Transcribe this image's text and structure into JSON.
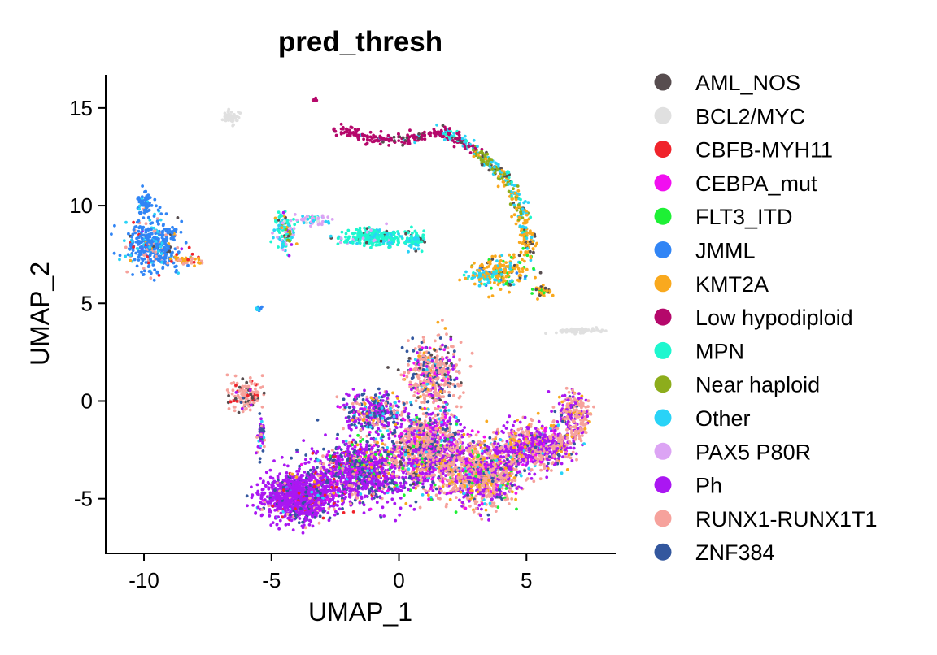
{
  "chart_data": {
    "type": "scatter",
    "title": "pred_thresh",
    "xlabel": "UMAP_1",
    "ylabel": "UMAP_2",
    "xlim": [
      -11.5,
      8.5
    ],
    "ylim": [
      -7.8,
      16.7
    ],
    "xticks": [
      -10,
      -5,
      0,
      5
    ],
    "xtick_labels": [
      "-10",
      "-5",
      "0",
      "5"
    ],
    "yticks": [
      -5,
      0,
      5,
      10,
      15
    ],
    "ytick_labels": [
      "-5",
      "0",
      "5",
      "10",
      "15"
    ],
    "legend_position": "right",
    "series": [
      {
        "name": "AML_NOS",
        "color": "#574D4F"
      },
      {
        "name": "BCL2/MYC",
        "color": "#E0E0E0"
      },
      {
        "name": "CBFB-MYH11",
        "color": "#F0232B"
      },
      {
        "name": "CEBPA_mut",
        "color": "#F10FF0"
      },
      {
        "name": "FLT3_ITD",
        "color": "#1EF035"
      },
      {
        "name": "JMML",
        "color": "#3185F5"
      },
      {
        "name": "KMT2A",
        "color": "#F9A91E"
      },
      {
        "name": "Low hypodiploid",
        "color": "#B5086B"
      },
      {
        "name": "MPN",
        "color": "#1EF7CF"
      },
      {
        "name": "Near haploid",
        "color": "#8DAD1C"
      },
      {
        "name": "Other",
        "color": "#29D3F7"
      },
      {
        "name": "PAX5 P80R",
        "color": "#DCA4F4"
      },
      {
        "name": "Ph",
        "color": "#AA17F2"
      },
      {
        "name": "RUNX1-RUNX1T1",
        "color": "#F6A29C"
      },
      {
        "name": "ZNF384",
        "color": "#33579E"
      }
    ],
    "clusters": [
      {
        "center": [
          -9.6,
          8.0
        ],
        "spread": [
          0.9,
          1.1
        ],
        "n": 420,
        "mix": [
          [
            5,
            0.72
          ],
          [
            10,
            0.09
          ],
          [
            13,
            0.1
          ],
          [
            2,
            0.03
          ],
          [
            12,
            0.02
          ],
          [
            6,
            0.02
          ],
          [
            0,
            0.02
          ]
        ]
      },
      {
        "center": [
          -10.0,
          10.1
        ],
        "spread": [
          0.25,
          0.5
        ],
        "n": 60,
        "mix": [
          [
            5,
            0.9
          ],
          [
            10,
            0.1
          ]
        ]
      },
      {
        "center": [
          -8.3,
          7.2
        ],
        "spread": [
          0.5,
          0.2
        ],
        "n": 40,
        "mix": [
          [
            6,
            0.6
          ],
          [
            13,
            0.3
          ],
          [
            2,
            0.1
          ]
        ]
      },
      {
        "center": [
          -6.6,
          14.5
        ],
        "spread": [
          0.2,
          0.25
        ],
        "n": 60,
        "mix": [
          [
            1,
            1.0
          ]
        ]
      },
      {
        "center": [
          -4.5,
          8.7
        ],
        "spread": [
          0.35,
          0.8
        ],
        "n": 130,
        "mix": [
          [
            10,
            0.35
          ],
          [
            8,
            0.25
          ],
          [
            11,
            0.15
          ],
          [
            0,
            0.1
          ],
          [
            9,
            0.05
          ],
          [
            6,
            0.05
          ],
          [
            12,
            0.05
          ]
        ]
      },
      {
        "center": [
          -3.5,
          9.3
        ],
        "spread": [
          0.8,
          0.25
        ],
        "n": 60,
        "mix": [
          [
            11,
            0.5
          ],
          [
            8,
            0.2
          ],
          [
            10,
            0.15
          ],
          [
            1,
            0.15
          ]
        ]
      },
      {
        "center": [
          -1.0,
          8.4
        ],
        "spread": [
          1.0,
          0.35
        ],
        "n": 280,
        "mix": [
          [
            8,
            0.75
          ],
          [
            10,
            0.15
          ],
          [
            11,
            0.05
          ],
          [
            0,
            0.05
          ]
        ]
      },
      {
        "center": [
          0.6,
          8.2
        ],
        "spread": [
          0.35,
          0.35
        ],
        "n": 90,
        "mix": [
          [
            8,
            0.7
          ],
          [
            10,
            0.2
          ],
          [
            0,
            0.1
          ]
        ]
      },
      {
        "center": [
          -3.3,
          15.4
        ],
        "spread": [
          0.08,
          0.1
        ],
        "n": 6,
        "mix": [
          [
            7,
            0.5
          ],
          [
            6,
            0.5
          ]
        ]
      },
      {
        "center": [
          -5.5,
          4.7
        ],
        "spread": [
          0.12,
          0.08
        ],
        "n": 15,
        "mix": [
          [
            5,
            0.5
          ],
          [
            10,
            0.5
          ]
        ]
      },
      {
        "center": [
          7.0,
          3.6
        ],
        "spread": [
          0.7,
          0.12
        ],
        "n": 60,
        "mix": [
          [
            1,
            1.0
          ]
        ]
      },
      {
        "center": [
          4.0,
          6.6
        ],
        "spread": [
          0.9,
          0.7
        ],
        "n": 180,
        "mix": [
          [
            6,
            0.6
          ],
          [
            4,
            0.1
          ],
          [
            0,
            0.1
          ],
          [
            10,
            0.1
          ],
          [
            5,
            0.05
          ],
          [
            9,
            0.05
          ]
        ]
      },
      {
        "center": [
          3.3,
          6.4
        ],
        "spread": [
          0.6,
          0.3
        ],
        "n": 60,
        "mix": [
          [
            10,
            0.5
          ],
          [
            6,
            0.3
          ],
          [
            8,
            0.2
          ]
        ]
      },
      {
        "center": [
          5.6,
          5.6
        ],
        "spread": [
          0.3,
          0.3
        ],
        "n": 40,
        "mix": [
          [
            6,
            0.5
          ],
          [
            0,
            0.3
          ],
          [
            4,
            0.2
          ]
        ]
      },
      {
        "center": [
          -6.0,
          0.3
        ],
        "spread": [
          0.6,
          0.6
        ],
        "n": 140,
        "mix": [
          [
            13,
            0.65
          ],
          [
            0,
            0.1
          ],
          [
            14,
            0.1
          ],
          [
            12,
            0.05
          ],
          [
            2,
            0.05
          ],
          [
            10,
            0.05
          ]
        ]
      },
      {
        "center": [
          -5.4,
          -1.7
        ],
        "spread": [
          0.15,
          0.9
        ],
        "n": 50,
        "mix": [
          [
            12,
            0.4
          ],
          [
            14,
            0.3
          ],
          [
            13,
            0.2
          ],
          [
            10,
            0.1
          ]
        ]
      },
      {
        "center": [
          1.3,
          1.3
        ],
        "spread": [
          0.9,
          1.5
        ],
        "n": 450,
        "mix": [
          [
            13,
            0.55
          ],
          [
            14,
            0.15
          ],
          [
            12,
            0.08
          ],
          [
            10,
            0.05
          ],
          [
            3,
            0.05
          ],
          [
            0,
            0.05
          ],
          [
            6,
            0.07
          ]
        ]
      },
      {
        "center": [
          -3.9,
          -4.9
        ],
        "spread": [
          1.1,
          0.9
        ],
        "n": 1200,
        "mix": [
          [
            12,
            0.8
          ],
          [
            14,
            0.08
          ],
          [
            13,
            0.05
          ],
          [
            2,
            0.03
          ],
          [
            10,
            0.02
          ],
          [
            3,
            0.02
          ]
        ]
      },
      {
        "center": [
          -1.5,
          -3.6
        ],
        "spread": [
          1.5,
          1.3
        ],
        "n": 1100,
        "mix": [
          [
            12,
            0.55
          ],
          [
            14,
            0.18
          ],
          [
            13,
            0.1
          ],
          [
            3,
            0.05
          ],
          [
            2,
            0.03
          ],
          [
            10,
            0.03
          ],
          [
            6,
            0.03
          ],
          [
            4,
            0.03
          ]
        ]
      },
      {
        "center": [
          1.2,
          -2.5
        ],
        "spread": [
          1.2,
          1.6
        ],
        "n": 1200,
        "mix": [
          [
            13,
            0.38
          ],
          [
            12,
            0.3
          ],
          [
            14,
            0.1
          ],
          [
            3,
            0.07
          ],
          [
            6,
            0.05
          ],
          [
            10,
            0.04
          ],
          [
            4,
            0.03
          ],
          [
            0,
            0.03
          ]
        ]
      },
      {
        "center": [
          3.3,
          -3.8
        ],
        "spread": [
          1.1,
          1.3
        ],
        "n": 1000,
        "mix": [
          [
            13,
            0.5
          ],
          [
            12,
            0.2
          ],
          [
            6,
            0.1
          ],
          [
            3,
            0.07
          ],
          [
            14,
            0.05
          ],
          [
            10,
            0.04
          ],
          [
            4,
            0.04
          ]
        ]
      },
      {
        "center": [
          5.2,
          -2.3
        ],
        "spread": [
          1.2,
          0.9
        ],
        "n": 700,
        "mix": [
          [
            12,
            0.45
          ],
          [
            13,
            0.3
          ],
          [
            6,
            0.1
          ],
          [
            3,
            0.06
          ],
          [
            14,
            0.05
          ],
          [
            10,
            0.04
          ]
        ]
      },
      {
        "center": [
          6.8,
          -0.6
        ],
        "spread": [
          0.55,
          0.9
        ],
        "n": 180,
        "mix": [
          [
            13,
            0.5
          ],
          [
            12,
            0.3
          ],
          [
            14,
            0.1
          ],
          [
            6,
            0.1
          ]
        ]
      },
      {
        "center": [
          -1.0,
          -0.6
        ],
        "spread": [
          1.0,
          0.8
        ],
        "n": 350,
        "mix": [
          [
            14,
            0.3
          ],
          [
            12,
            0.35
          ],
          [
            13,
            0.2
          ],
          [
            10,
            0.07
          ],
          [
            3,
            0.04
          ],
          [
            6,
            0.04
          ]
        ]
      }
    ],
    "arcs": [
      {
        "points": [
          [
            -2.5,
            13.9
          ],
          [
            -1.0,
            13.4
          ],
          [
            0.5,
            13.4
          ],
          [
            1.8,
            13.8
          ],
          [
            2.5,
            13.3
          ],
          [
            3.3,
            12.4
          ],
          [
            4.1,
            11.6
          ],
          [
            4.7,
            10.2
          ],
          [
            5.0,
            8.6
          ],
          [
            5.1,
            7.4
          ]
        ],
        "n": 560,
        "jitter": 0.14,
        "mixes": [
          [
            [
              7,
              0.9
            ],
            [
              10,
              0.05
            ],
            [
              0,
              0.05
            ]
          ],
          [
            [
              7,
              0.8
            ],
            [
              10,
              0.1
            ],
            [
              0,
              0.1
            ]
          ],
          [
            [
              7,
              0.6
            ],
            [
              10,
              0.25
            ],
            [
              8,
              0.1
            ],
            [
              0,
              0.05
            ]
          ],
          [
            [
              9,
              0.5
            ],
            [
              10,
              0.25
            ],
            [
              6,
              0.15
            ],
            [
              0,
              0.1
            ]
          ],
          [
            [
              10,
              0.3
            ],
            [
              6,
              0.3
            ],
            [
              9,
              0.2
            ],
            [
              8,
              0.1
            ],
            [
              0,
              0.1
            ]
          ],
          [
            [
              6,
              0.6
            ],
            [
              10,
              0.15
            ],
            [
              0,
              0.15
            ],
            [
              4,
              0.1
            ]
          ]
        ]
      },
      {
        "points": [
          [
            6.8,
            0.4
          ],
          [
            7.3,
            -0.6
          ],
          [
            7.1,
            -1.6
          ],
          [
            6.3,
            -2.3
          ]
        ],
        "n": 90,
        "jitter": 0.15,
        "mixes": [
          [
            [
              13,
              0.7
            ],
            [
              12,
              0.2
            ],
            [
              6,
              0.1
            ]
          ]
        ]
      }
    ]
  }
}
